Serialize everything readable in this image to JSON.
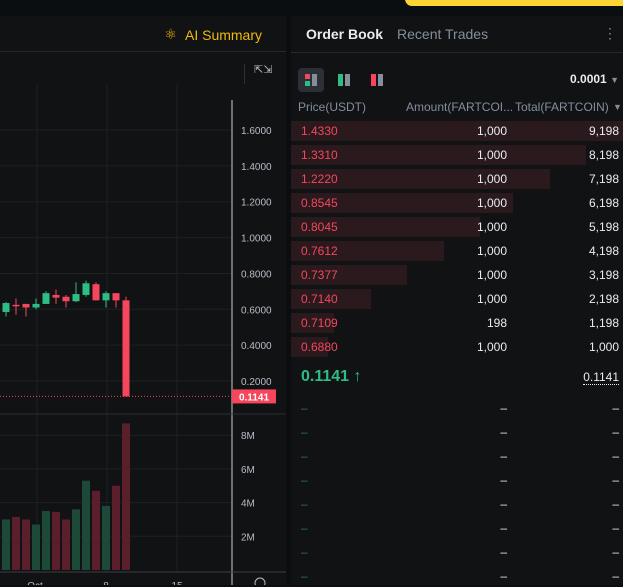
{
  "chart_header": {
    "ai_summary_label": "AI Summary"
  },
  "price_axis": {
    "ticks": [
      "1.6000",
      "1.4000",
      "1.2000",
      "1.0000",
      "0.8000",
      "0.6000",
      "0.4000",
      "0.2000"
    ],
    "current_price": "0.1141"
  },
  "volume_axis": {
    "ticks": [
      "8M",
      "6M",
      "4M",
      "2M"
    ]
  },
  "time_axis": {
    "ticks": [
      "Oct",
      "8",
      "15"
    ]
  },
  "colors": {
    "up": "#2ebd85",
    "down": "#f6465d",
    "accent": "#f0b90b",
    "background": "#111214"
  },
  "candles": [
    {
      "o": 0.585,
      "h": 0.64,
      "l": 0.56,
      "c": 0.635,
      "v": 3.0
    },
    {
      "o": 0.625,
      "h": 0.66,
      "l": 0.57,
      "c": 0.62,
      "v": 3.15
    },
    {
      "o": 0.63,
      "h": 0.63,
      "l": 0.56,
      "c": 0.61,
      "v": 3.0
    },
    {
      "o": 0.61,
      "h": 0.66,
      "l": 0.6,
      "c": 0.63,
      "v": 2.7
    },
    {
      "o": 0.63,
      "h": 0.7,
      "l": 0.63,
      "c": 0.69,
      "v": 3.5
    },
    {
      "o": 0.68,
      "h": 0.71,
      "l": 0.63,
      "c": 0.665,
      "v": 3.45
    },
    {
      "o": 0.67,
      "h": 0.68,
      "l": 0.61,
      "c": 0.645,
      "v": 3.0
    },
    {
      "o": 0.645,
      "h": 0.75,
      "l": 0.64,
      "c": 0.685,
      "v": 3.6
    },
    {
      "o": 0.68,
      "h": 0.76,
      "l": 0.67,
      "c": 0.745,
      "v": 5.3
    },
    {
      "o": 0.74,
      "h": 0.75,
      "l": 0.65,
      "c": 0.65,
      "v": 4.7
    },
    {
      "o": 0.65,
      "h": 0.7,
      "l": 0.61,
      "c": 0.69,
      "v": 3.8
    },
    {
      "o": 0.69,
      "h": 0.69,
      "l": 0.61,
      "c": 0.65,
      "v": 5.0
    },
    {
      "o": 0.65,
      "h": 0.67,
      "l": 0.1141,
      "c": 0.1141,
      "v": 8.7
    }
  ],
  "orderbook": {
    "tabs": [
      "Order Book",
      "Recent Trades"
    ],
    "tick_size": "0.0001",
    "columns": [
      "Price(USDT)",
      "Amount(FARTCOI...",
      "Total(FARTCOIN)"
    ],
    "asks": [
      {
        "price": "1.4330",
        "amount": "1,000",
        "total": "9,198",
        "depth": 1.0
      },
      {
        "price": "1.3310",
        "amount": "1,000",
        "total": "8,198",
        "depth": 0.89
      },
      {
        "price": "1.2220",
        "amount": "1,000",
        "total": "7,198",
        "depth": 0.78
      },
      {
        "price": "0.8545",
        "amount": "1,000",
        "total": "6,198",
        "depth": 0.67
      },
      {
        "price": "0.8045",
        "amount": "1,000",
        "total": "5,198",
        "depth": 0.57
      },
      {
        "price": "0.7612",
        "amount": "1,000",
        "total": "4,198",
        "depth": 0.46
      },
      {
        "price": "0.7377",
        "amount": "1,000",
        "total": "3,198",
        "depth": 0.35
      },
      {
        "price": "0.7140",
        "amount": "1,000",
        "total": "2,198",
        "depth": 0.24
      },
      {
        "price": "0.7109",
        "amount": "198",
        "total": "1,198",
        "depth": 0.13
      },
      {
        "price": "0.6880",
        "amount": "1,000",
        "total": "1,000",
        "depth": 0.11
      }
    ],
    "last_price": "0.1141",
    "last_arrow": "↑",
    "mark_price": "0.1141",
    "bid_placeholder": "–",
    "bid_rows": 8
  }
}
